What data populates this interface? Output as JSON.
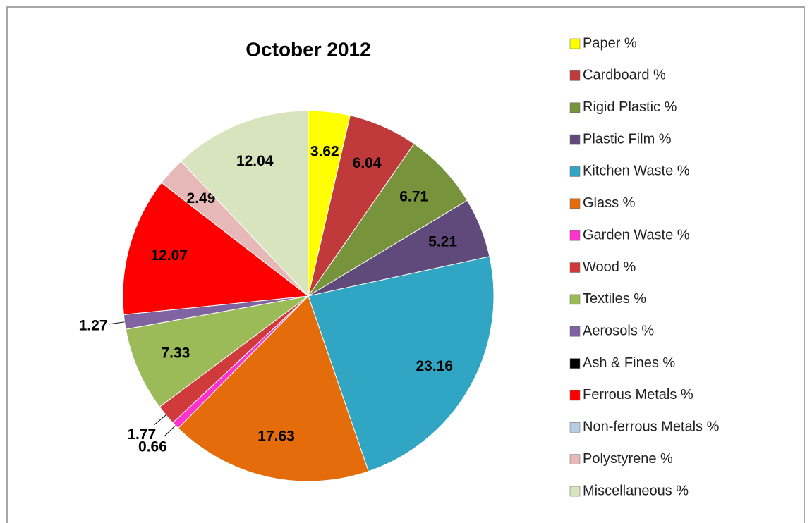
{
  "chart_data": {
    "type": "pie",
    "title": "October 2012",
    "categories": [
      "Paper %",
      "Cardboard %",
      "Rigid Plastic %",
      "Plastic Film %",
      "Kitchen Waste %",
      "Glass %",
      "Garden Waste %",
      "Wood %",
      "Textiles %",
      "Aerosols %",
      "Ash & Fines %",
      "Ferrous Metals %",
      "Non-ferrous Metals %",
      "Polystyrene %",
      "Miscellaneous %"
    ],
    "values": [
      3.62,
      6.04,
      6.71,
      5.21,
      23.16,
      17.63,
      0.66,
      1.77,
      7.33,
      1.27,
      0,
      12.07,
      0,
      2.49,
      12.04
    ],
    "colors": [
      "#ffff00",
      "#c0393b",
      "#77933c",
      "#604a7b",
      "#31a5c4",
      "#e46c0a",
      "#ff33cc",
      "#d03a3a",
      "#9bbb59",
      "#8064a2",
      "#000000",
      "#ff0000",
      "#b8cce4",
      "#e6b9b8",
      "#d7e4bd"
    ],
    "legend": "right"
  }
}
